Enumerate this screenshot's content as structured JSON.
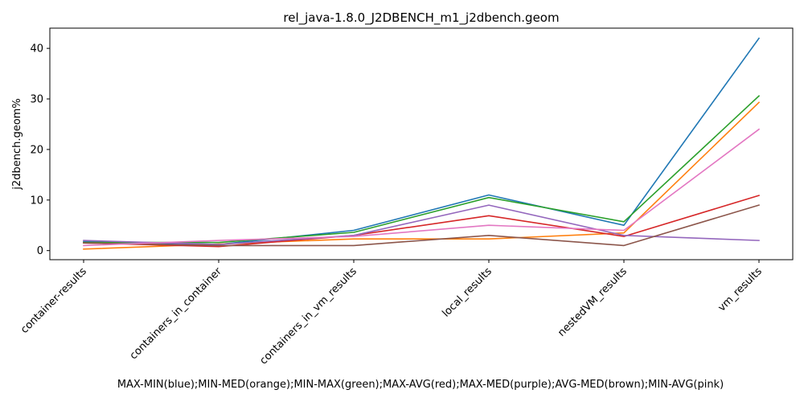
{
  "chart_data": {
    "type": "line",
    "title": "rel_java-1.8.0_J2DBENCH_m1_j2dbench.geom",
    "xlabel": "MAX-MIN(blue);MIN-MED(orange);MIN-MAX(green);MAX-AVG(red);MAX-MED(purple);AVG-MED(brown);MIN-AVG(pink)",
    "ylabel": "j2dbench.geom%",
    "categories": [
      "container-results",
      "containers_in_container",
      "containers_in_vm_results",
      "local_results",
      "nestedVM_results",
      "vm_results"
    ],
    "ylim": [
      -1.8,
      44
    ],
    "yticks": [
      0,
      10,
      20,
      30,
      40
    ],
    "grid": false,
    "series": [
      {
        "color": "#1f77b4",
        "values": [
          1.8,
          1.2,
          4.0,
          11.0,
          5.0,
          42.0
        ]
      },
      {
        "color": "#ff7f0e",
        "values": [
          0.3,
          1.3,
          2.3,
          2.3,
          3.5,
          29.3
        ]
      },
      {
        "color": "#2ca02c",
        "values": [
          1.6,
          1.6,
          3.6,
          10.5,
          5.7,
          30.6
        ]
      },
      {
        "color": "#d62728",
        "values": [
          1.5,
          0.8,
          3.0,
          6.9,
          2.8,
          10.9
        ]
      },
      {
        "color": "#9467bd",
        "values": [
          2.0,
          1.2,
          3.0,
          9.0,
          3.0,
          2.0
        ]
      },
      {
        "color": "#8c564b",
        "values": [
          1.5,
          1.0,
          1.0,
          3.0,
          1.0,
          9.0
        ]
      },
      {
        "color": "#e377c2",
        "values": [
          1.0,
          2.0,
          2.8,
          5.0,
          4.0,
          24.0
        ]
      }
    ]
  }
}
